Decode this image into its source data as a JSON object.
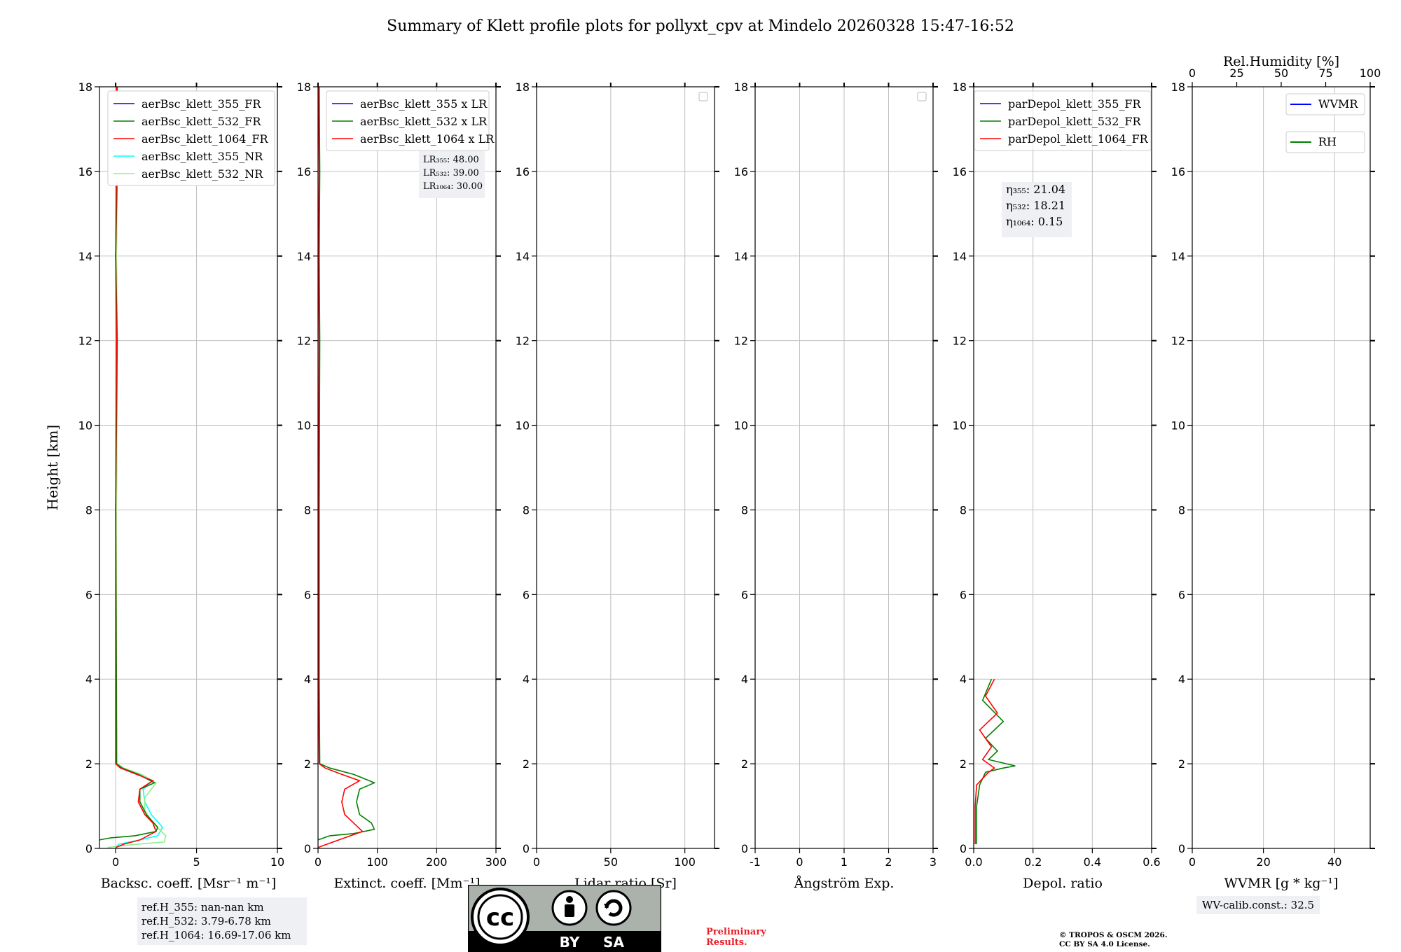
{
  "title": "Summary of Klett profile plots for pollyxt_cpv at Mindelo 20260328 15:47-16:52",
  "ref_heights": [
    "ref.H_355: nan-nan km",
    "ref.H_532: 3.79-6.78 km",
    "ref.H_1064: 16.69-17.06 km"
  ],
  "wv_calib": "WV-calib.const.: 32.5",
  "preliminary": [
    "Preliminary",
    "Results."
  ],
  "copyright": [
    "© TROPOS & OSCM 2026.",
    "CC BY SA 4.0 License."
  ],
  "license_badge": {
    "by": "BY",
    "sa": "SA",
    "cc": "cc"
  },
  "colors": {
    "blue": "#0000ff",
    "green": "#008000",
    "red": "#ff0000",
    "cyan": "#00ffff",
    "lightgreen": "#90ee90"
  },
  "chart_data": [
    {
      "type": "line",
      "title": "",
      "xlabel": "Backsc. coeff. [Msr⁻¹ m⁻¹]",
      "ylabel": "Height [km]",
      "xlim": [
        -1,
        10
      ],
      "ylim": [
        0,
        18
      ],
      "xticks": [
        0,
        5,
        10
      ],
      "yticks": [
        0,
        2,
        4,
        6,
        8,
        10,
        12,
        14,
        16,
        18
      ],
      "legend": [
        "aerBsc_klett_355_FR",
        "aerBsc_klett_532_FR",
        "aerBsc_klett_1064_FR",
        "aerBsc_klett_355_NR",
        "aerBsc_klett_532_NR"
      ],
      "series": [
        {
          "name": "aerBsc_klett_355_NR",
          "color": "#00ffff",
          "x": [
            0,
            0.2,
            1.5,
            2.6,
            2.9,
            2.2,
            1.8,
            1.7,
            2.3,
            1.5,
            0.5,
            0.1,
            0.05,
            0.05,
            0.1,
            0.05,
            0.1,
            0.1
          ],
          "y": [
            0.02,
            0.1,
            0.2,
            0.3,
            0.5,
            0.8,
            1.1,
            1.4,
            1.6,
            1.75,
            1.9,
            2.0,
            4,
            8,
            12,
            14,
            16,
            18
          ]
        },
        {
          "name": "aerBsc_klett_532_NR",
          "color": "#90ee90",
          "x": [
            -0.5,
            0.8,
            2.0,
            3.0,
            3.1,
            2.3,
            1.8,
            1.8,
            2.5,
            1.6,
            0.5,
            0.1,
            0.05,
            0.05,
            0.1,
            0.05,
            0.1,
            0.1
          ],
          "y": [
            0.02,
            0.08,
            0.12,
            0.15,
            0.3,
            0.6,
            0.9,
            1.2,
            1.55,
            1.75,
            1.9,
            2.0,
            4,
            8,
            12,
            14,
            16,
            18
          ]
        },
        {
          "name": "aerBsc_klett_532_FR",
          "color": "#008000",
          "x": [
            -1,
            -0.3,
            1.2,
            2.5,
            2.6,
            1.9,
            1.5,
            1.5,
            2.4,
            1.4,
            0.4,
            0.05,
            0.05,
            0.0,
            0.1,
            0.0,
            0.1,
            0.1
          ],
          "y": [
            0.2,
            0.25,
            0.3,
            0.4,
            0.5,
            0.8,
            1.1,
            1.4,
            1.55,
            1.75,
            1.9,
            2.0,
            4,
            8,
            12,
            14,
            16,
            18
          ]
        },
        {
          "name": "aerBsc_klett_1064_FR",
          "color": "#ff0000",
          "x": [
            0,
            0.5,
            1.5,
            2.5,
            2.3,
            1.8,
            1.4,
            1.5,
            2.3,
            1.3,
            0.3,
            0.0,
            0.0,
            0.0,
            0.05,
            0.0,
            0.05,
            0.05
          ],
          "y": [
            0.02,
            0.1,
            0.2,
            0.4,
            0.6,
            0.8,
            1.1,
            1.4,
            1.6,
            1.75,
            1.9,
            2.0,
            4,
            8,
            12,
            14,
            16,
            18
          ]
        },
        {
          "name": "aerBsc_klett_355_FR",
          "color": "#0000ff",
          "x": [],
          "y": []
        }
      ]
    },
    {
      "type": "line",
      "xlabel": "Extinct. coeff. [Mm⁻¹]",
      "xlim": [
        0,
        300
      ],
      "ylim": [
        0,
        18
      ],
      "xticks": [
        0,
        100,
        200,
        300
      ],
      "yticks": [
        0,
        2,
        4,
        6,
        8,
        10,
        12,
        14,
        16,
        18
      ],
      "legend": [
        "aerBsc_klett_355 x LR",
        "aerBsc_klett_532 x LR",
        "aerBsc_klett_1064 x LR"
      ],
      "annotations": [
        "LR₃₅₅: 48.00",
        "LR₅₃₂: 39.00",
        "LR₁₀₆₄: 30.00"
      ],
      "series": [
        {
          "name": "aerBsc_klett_532 x LR",
          "color": "#008000",
          "x": [
            0,
            20,
            60,
            95,
            90,
            70,
            65,
            70,
            95,
            60,
            20,
            3,
            2,
            2,
            3,
            2,
            3,
            2
          ],
          "y": [
            0.2,
            0.3,
            0.35,
            0.45,
            0.6,
            0.8,
            1.1,
            1.4,
            1.55,
            1.75,
            1.9,
            2.0,
            4,
            8,
            12,
            14,
            16,
            18
          ]
        },
        {
          "name": "aerBsc_klett_1064 x LR",
          "color": "#ff0000",
          "x": [
            0,
            15,
            45,
            75,
            60,
            45,
            40,
            45,
            70,
            40,
            12,
            2,
            1,
            1,
            2,
            1,
            2,
            1
          ],
          "y": [
            0.02,
            0.1,
            0.25,
            0.4,
            0.6,
            0.8,
            1.1,
            1.4,
            1.6,
            1.75,
            1.9,
            2.0,
            4,
            8,
            12,
            14,
            16,
            18
          ]
        },
        {
          "name": "aerBsc_klett_355 x LR",
          "color": "#0000ff",
          "x": [],
          "y": []
        }
      ]
    },
    {
      "type": "line",
      "xlabel": "Lidar ratio [Sr]",
      "xlim": [
        0,
        120
      ],
      "ylim": [
        0,
        18
      ],
      "xticks": [
        0,
        50,
        100
      ],
      "yticks": [
        0,
        2,
        4,
        6,
        8,
        10,
        12,
        14,
        16,
        18
      ],
      "series": []
    },
    {
      "type": "line",
      "xlabel": "Ångström Exp.",
      "xlim": [
        -1,
        3
      ],
      "ylim": [
        0,
        18
      ],
      "xticks": [
        -1,
        0,
        1,
        2,
        3
      ],
      "yticks": [
        0,
        2,
        4,
        6,
        8,
        10,
        12,
        14,
        16,
        18
      ],
      "series": []
    },
    {
      "type": "line",
      "xlabel": "Depol. ratio",
      "xlim": [
        0,
        0.6
      ],
      "ylim": [
        0,
        18
      ],
      "xticks": [
        0.0,
        0.2,
        0.4,
        0.6
      ],
      "yticks": [
        0,
        2,
        4,
        6,
        8,
        10,
        12,
        14,
        16,
        18
      ],
      "legend": [
        "parDepol_klett_355_FR",
        "parDepol_klett_532_FR",
        "parDepol_klett_1064_FR"
      ],
      "annotations": [
        "η₃₅₅: 21.04",
        "η₅₃₂: 18.21",
        "η₁₀₆₄: 0.15"
      ],
      "series": [
        {
          "name": "parDepol_klett_532_FR",
          "color": "#008000",
          "x": [
            0.01,
            0.01,
            0.01,
            0.02,
            0.04,
            0.1,
            0.14,
            0.05,
            0.08,
            0.04,
            0.1,
            0.03,
            0.06
          ],
          "y": [
            0.1,
            0.5,
            1.0,
            1.5,
            1.8,
            1.9,
            1.95,
            2.1,
            2.3,
            2.6,
            3.0,
            3.5,
            4.0
          ]
        },
        {
          "name": "parDepol_klett_1064_FR",
          "color": "#ff0000",
          "x": [
            0.005,
            0.005,
            0.005,
            0.01,
            0.05,
            0.07,
            0.03,
            0.06,
            0.02,
            0.08,
            0.04,
            0.07
          ],
          "y": [
            0.1,
            0.5,
            1.0,
            1.5,
            1.8,
            1.9,
            2.1,
            2.4,
            2.8,
            3.2,
            3.6,
            4.0
          ]
        },
        {
          "name": "parDepol_klett_355_FR",
          "color": "#0000ff",
          "x": [],
          "y": []
        }
      ]
    },
    {
      "type": "line",
      "xlabel": "WVMR [g * kg⁻¹]",
      "top_xlabel": "Rel.Humidity [%]",
      "xlim": [
        0,
        50
      ],
      "ylim": [
        0,
        18
      ],
      "xticks": [
        0,
        20,
        40
      ],
      "top_xticks": [
        0,
        25,
        50,
        75,
        100
      ],
      "yticks": [
        0,
        2,
        4,
        6,
        8,
        10,
        12,
        14,
        16,
        18
      ],
      "legend": [
        "WVMR",
        "RH"
      ],
      "series": [
        {
          "name": "WVMR",
          "color": "#0000ff",
          "x": [],
          "y": []
        },
        {
          "name": "RH",
          "color": "#008000",
          "x": [],
          "y": []
        }
      ]
    }
  ]
}
